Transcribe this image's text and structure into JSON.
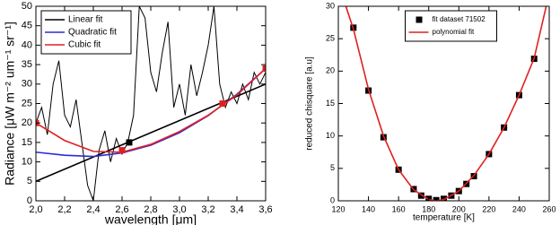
{
  "chart_data": [
    {
      "type": "line",
      "xlabel": "wavelength [μm]",
      "ylabel": "Radiance [μW m⁻² um⁻¹ sr⁻¹]",
      "xlim": [
        2.0,
        3.6
      ],
      "ylim": [
        0,
        50
      ],
      "xticks": [
        {
          "value": 2.0,
          "label": "2,0"
        },
        {
          "value": 2.2,
          "label": "2,2"
        },
        {
          "value": 2.4,
          "label": "2,4"
        },
        {
          "value": 2.6,
          "label": "2,6"
        },
        {
          "value": 2.8,
          "label": "2,8"
        },
        {
          "value": 3.0,
          "label": "3,0"
        },
        {
          "value": 3.2,
          "label": "3,2"
        },
        {
          "value": 3.4,
          "label": "3,4"
        },
        {
          "value": 3.6,
          "label": "3,6"
        }
      ],
      "yticks": [
        0,
        5,
        10,
        15,
        20,
        25,
        30,
        35,
        40,
        45,
        50
      ],
      "grid": false,
      "legend": "upper left",
      "series": [
        {
          "color": "#000000",
          "x": [
            2.0,
            2.04,
            2.08,
            2.12,
            2.16,
            2.2,
            2.24,
            2.28,
            2.32,
            2.36,
            2.4,
            2.44,
            2.48,
            2.52,
            2.56,
            2.6,
            2.64,
            2.68,
            2.72,
            2.76,
            2.8,
            2.84,
            2.88,
            2.92,
            2.96,
            3.0,
            3.04,
            3.08,
            3.12,
            3.16,
            3.2,
            3.24,
            3.28,
            3.32,
            3.36,
            3.4,
            3.44,
            3.48,
            3.52,
            3.56,
            3.6
          ],
          "values": [
            20,
            24,
            17,
            30,
            36,
            22,
            19,
            26,
            15,
            4,
            0,
            13,
            18,
            10,
            16,
            12,
            15,
            22,
            50,
            47,
            33,
            28,
            38,
            46,
            24,
            30,
            22,
            35,
            27,
            33,
            40,
            50,
            30,
            24,
            28,
            25,
            30,
            26,
            33,
            30,
            33
          ]
        },
        {
          "name": "Linear fit",
          "color": "#000000",
          "x": [
            2.0,
            3.6
          ],
          "values": [
            5,
            30
          ]
        },
        {
          "name": "Quadratic fit",
          "color": "#2b2bd6",
          "x": [
            2.0,
            2.2,
            2.4,
            2.6,
            2.8,
            3.0,
            3.2,
            3.4,
            3.6
          ],
          "values": [
            12.5,
            11.7,
            11.4,
            12.3,
            14.3,
            17.5,
            21.9,
            27.4,
            34
          ]
        },
        {
          "name": "Cubic fit",
          "color": "#e02020",
          "x": [
            2.0,
            2.2,
            2.4,
            2.6,
            2.8,
            3.0,
            3.2,
            3.4,
            3.6
          ],
          "values": [
            20,
            15.5,
            12.7,
            12.5,
            14.5,
            17.8,
            22,
            27.2,
            34
          ]
        },
        {
          "color": "#e02020",
          "marker": "square",
          "x": [
            2.0,
            2.6,
            3.3,
            3.6
          ],
          "values": [
            20,
            13,
            25,
            34
          ]
        },
        {
          "color": "#000000",
          "marker": "square",
          "x": [
            2.65
          ],
          "values": [
            15
          ]
        }
      ]
    },
    {
      "type": "line",
      "xlabel": "temperature [K]",
      "ylabel": "reduced chisquare [a.u]",
      "xlim": [
        120,
        260
      ],
      "ylim": [
        0,
        30
      ],
      "xticks": [
        120,
        140,
        160,
        180,
        200,
        220,
        240,
        260
      ],
      "yticks": [
        0,
        5,
        10,
        15,
        20,
        25,
        30
      ],
      "grid": false,
      "legend": "upper center",
      "series": [
        {
          "name": "fit dataset 71502",
          "color": "#000000",
          "marker": "square",
          "x": [
            130,
            140,
            150,
            160,
            170,
            175,
            180,
            185,
            190,
            195,
            200,
            205,
            210,
            220,
            230,
            240,
            250
          ],
          "values": [
            26.7,
            17,
            9.8,
            4.8,
            1.8,
            0.8,
            0.3,
            0.1,
            0.3,
            0.8,
            1.5,
            2.6,
            3.8,
            7.2,
            11.3,
            16.3,
            21.9
          ]
        },
        {
          "name": "polynomial fit",
          "color": "#e02020",
          "x": [
            125,
            130,
            140,
            150,
            160,
            170,
            180,
            185,
            190,
            200,
            210,
            220,
            230,
            240,
            250,
            258
          ],
          "values": [
            30,
            26.5,
            17.2,
            10,
            4.8,
            1.7,
            0.2,
            0,
            0.2,
            1.5,
            3.9,
            7.2,
            11.3,
            16.3,
            22,
            30
          ]
        }
      ]
    }
  ]
}
